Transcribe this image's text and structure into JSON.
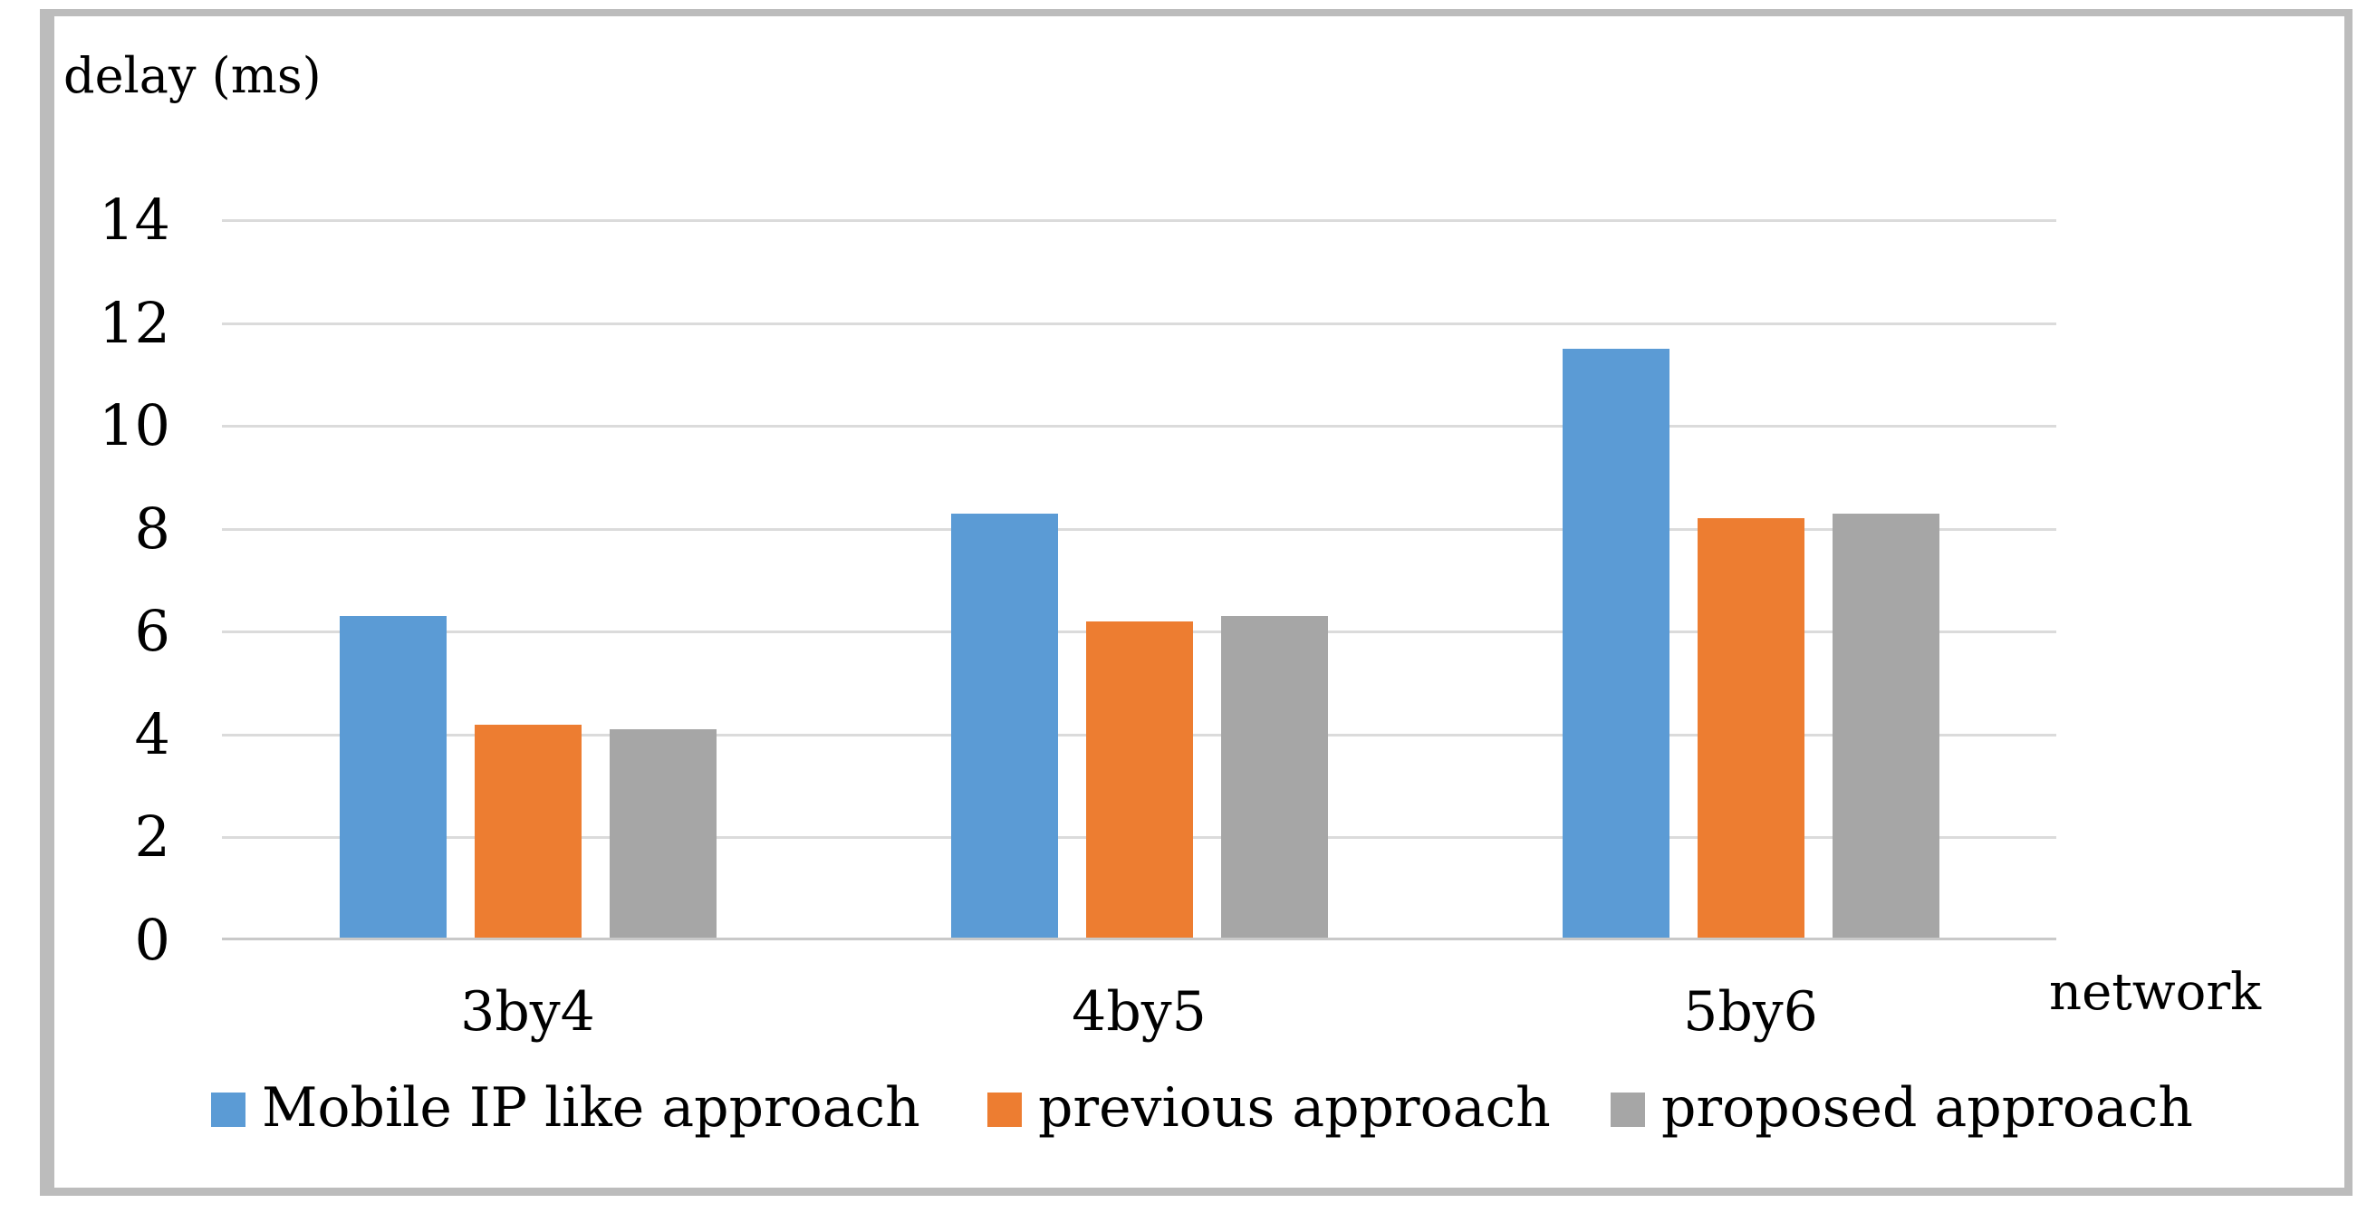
{
  "chart_data": {
    "type": "bar",
    "title": "",
    "ylabel": "delay (ms)",
    "xlabel": "network",
    "categories": [
      "3by4",
      "4by5",
      "5by6"
    ],
    "series": [
      {
        "name": "Mobile IP like approach",
        "color": "#5B9BD5",
        "values": [
          6.3,
          8.3,
          11.5
        ]
      },
      {
        "name": "previous approach",
        "color": "#ED7D31",
        "values": [
          4.2,
          6.2,
          8.2
        ]
      },
      {
        "name": "proposed approach",
        "color": "#A6A6A6",
        "values": [
          4.1,
          6.3,
          8.3
        ]
      }
    ],
    "ylim": [
      0,
      14
    ],
    "y_ticks": [
      0,
      2,
      4,
      6,
      8,
      10,
      12,
      14
    ],
    "grid": "horizontal",
    "legend_position": "bottom",
    "colors": {
      "gridline": "#DBDBDB",
      "axis_line": "#C9C9C9",
      "frame_border": "#BCBCBC",
      "text": "#000000",
      "background": "#FFFFFF"
    }
  }
}
